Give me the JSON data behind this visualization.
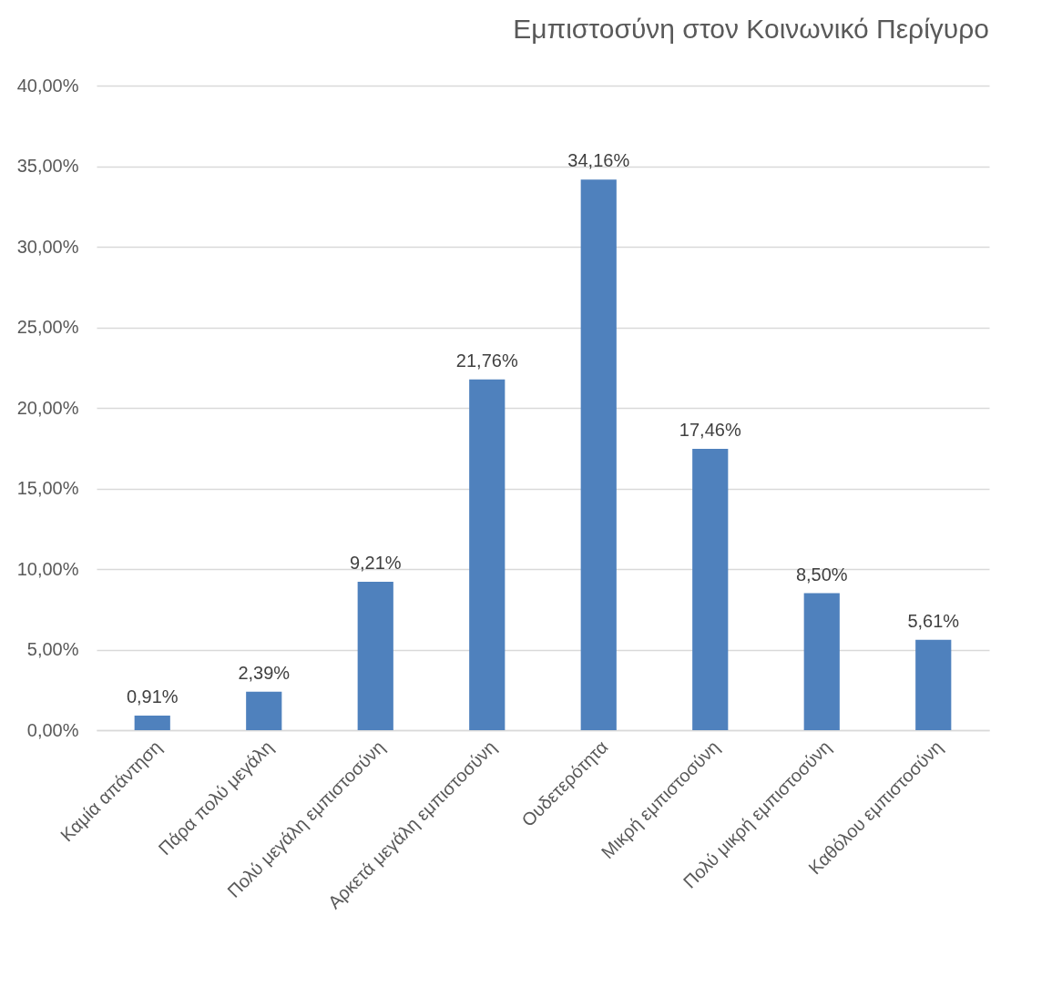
{
  "chart_data": {
    "type": "bar",
    "title": "Εμπιστοσύνη στον Κοινωνικό Περίγυρο",
    "categories": [
      "Καμία απάντηση",
      "Πάρα πολύ μεγάλη",
      "Πολύ μεγάλη εμπιστοσύνη",
      "Αρκετά μεγάλη εμπιστοσύνη",
      "Ουδετερότητα",
      "Μικρή εμπιστοσύνη",
      "Πολύ μικρή εμπιστοσύνη",
      "Καθόλου εμπιστοσύνη"
    ],
    "values": [
      0.91,
      2.39,
      9.21,
      21.76,
      34.16,
      17.46,
      8.5,
      5.61
    ],
    "value_labels": [
      "0,91%",
      "2,39%",
      "9,21%",
      "21,76%",
      "34,16%",
      "17,46%",
      "8,50%",
      "5,61%"
    ],
    "color": "#4f81bd",
    "ylim": [
      0,
      40
    ],
    "yticks": [
      {
        "value": 0,
        "label": "0,00%"
      },
      {
        "value": 5,
        "label": "5,00%"
      },
      {
        "value": 10,
        "label": "10,00%"
      },
      {
        "value": 15,
        "label": "15,00%"
      },
      {
        "value": 20,
        "label": "20,00%"
      },
      {
        "value": 25,
        "label": "25,00%"
      },
      {
        "value": 30,
        "label": "30,00%"
      },
      {
        "value": 35,
        "label": "35,00%"
      },
      {
        "value": 40,
        "label": "40,00%"
      }
    ],
    "grid": "y"
  }
}
